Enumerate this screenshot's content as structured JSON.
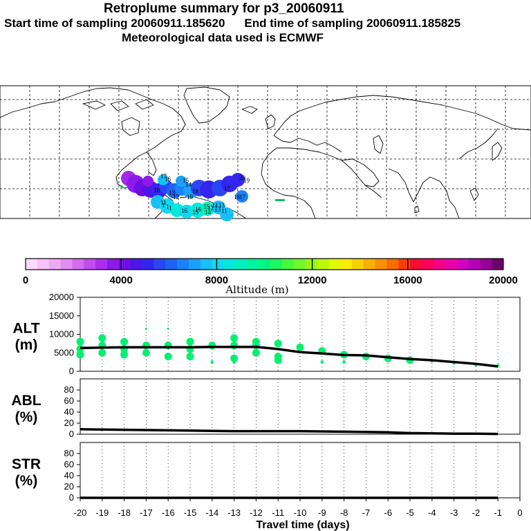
{
  "header": {
    "title": "Retroplume summary for p3_20060911",
    "start_label": "Start time of sampling 20060911.185620",
    "end_label": "End time of sampling 20060911.185825",
    "met_label": "Meteorological data used is ECMWF"
  },
  "map": {
    "plume_labels": [
      "17",
      "16",
      "15",
      "14",
      "13",
      "12",
      "11",
      "10",
      "19",
      "18",
      "1",
      "1",
      "1",
      "17",
      "16",
      "15",
      "14",
      "13",
      "12",
      "11",
      "20",
      "19",
      "18",
      "17",
      "16",
      "15",
      "14",
      "13"
    ]
  },
  "colorbar": {
    "title": "Altitude (m)",
    "tick_labels": [
      "0",
      "4000",
      "8000",
      "12000",
      "16000",
      "20000"
    ],
    "colors": [
      "#ffd9ff",
      "#f7c2f7",
      "#eeaaf4",
      "#e38cf2",
      "#d56cf0",
      "#c24cee",
      "#aa2cec",
      "#8c1aea",
      "#6e0ee4",
      "#4e16e8",
      "#3326ee",
      "#2a46f0",
      "#1e64f4",
      "#1a82f8",
      "#1aa2fa",
      "#18c0fa",
      "#10d8f2",
      "#06e8dc",
      "#00f0c0",
      "#00f4a0",
      "#00f680",
      "#1cf660",
      "#46f640",
      "#70f828",
      "#96f814",
      "#bcf808",
      "#e0f800",
      "#f8ec00",
      "#f8d000",
      "#f8b000",
      "#f89000",
      "#f86c00",
      "#f83e00",
      "#f80c30",
      "#f8005c",
      "#f40086",
      "#e800a8",
      "#d400c0",
      "#b400b4",
      "#960096",
      "#6e006e"
    ]
  },
  "chart_data": [
    {
      "type": "line",
      "panel": "ALT",
      "ylabel": "ALT\n(m)",
      "ylim": [
        0,
        20000
      ],
      "yticks": [
        0,
        5000,
        10000,
        15000,
        20000
      ],
      "x": [
        -20,
        -19,
        -18,
        -17,
        -16,
        -15,
        -14,
        -13,
        -12,
        -11,
        -10,
        -9,
        -8,
        -7,
        -6,
        -5,
        -4,
        -3,
        -2,
        -1
      ],
      "median_altitude_m": [
        6300,
        6400,
        6500,
        6500,
        6500,
        6500,
        6600,
        6600,
        6600,
        6000,
        5200,
        4800,
        4400,
        4300,
        3800,
        3300,
        3000,
        2500,
        2000,
        1300
      ],
      "scatter_points": [
        [
          -20,
          8000
        ],
        [
          -20,
          6000
        ],
        [
          -20,
          4500
        ],
        [
          -19,
          9000
        ],
        [
          -19,
          7000
        ],
        [
          -19,
          5000
        ],
        [
          -18,
          8000
        ],
        [
          -18,
          6000
        ],
        [
          -18,
          4500
        ],
        [
          -17,
          11500
        ],
        [
          -17,
          7000
        ],
        [
          -17,
          5000
        ],
        [
          -16,
          11500
        ],
        [
          -16,
          7000
        ],
        [
          -16,
          4000
        ],
        [
          -15,
          8000
        ],
        [
          -15,
          6000
        ],
        [
          -15,
          4000
        ],
        [
          -14,
          7000
        ],
        [
          -14,
          2500
        ],
        [
          -13,
          9000
        ],
        [
          -13,
          7000
        ],
        [
          -13,
          3500
        ],
        [
          -13,
          2500
        ],
        [
          -12,
          8000
        ],
        [
          -12,
          7000
        ],
        [
          -12,
          5000
        ],
        [
          -11,
          7500
        ],
        [
          -11,
          4000
        ],
        [
          -11,
          3000
        ],
        [
          -10,
          6500
        ],
        [
          -9,
          5500
        ],
        [
          -9,
          2500
        ],
        [
          -8,
          4500
        ],
        [
          -8,
          2500
        ],
        [
          -7,
          4000
        ],
        [
          -6,
          3500
        ],
        [
          -5,
          3000
        ],
        [
          -4,
          2800
        ],
        [
          -3,
          2200
        ],
        [
          -2,
          1700
        ],
        [
          -1,
          1500
        ]
      ],
      "point_color": "#00f070"
    },
    {
      "type": "line",
      "panel": "ABL",
      "ylabel": "ABL\n(%)",
      "ylim": [
        0,
        100
      ],
      "yticks": [
        0,
        20,
        40,
        60,
        80
      ],
      "x": [
        -20,
        -19,
        -18,
        -17,
        -16,
        -15,
        -14,
        -13,
        -12,
        -11,
        -10,
        -9,
        -8,
        -7,
        -6,
        -5,
        -4,
        -3,
        -2,
        -1
      ],
      "values": [
        9,
        8.5,
        8,
        7.5,
        7,
        6.5,
        6,
        5.5,
        5.5,
        5.5,
        5.5,
        5,
        4.5,
        4,
        3.5,
        2,
        1.5,
        1,
        1,
        0.5
      ]
    },
    {
      "type": "line",
      "panel": "STR",
      "ylabel": "STR\n(%)",
      "ylim": [
        0,
        100
      ],
      "yticks": [
        0,
        20,
        40,
        60,
        80
      ],
      "x": [
        -20,
        -19,
        -18,
        -17,
        -16,
        -15,
        -14,
        -13,
        -12,
        -11,
        -10,
        -9,
        -8,
        -7,
        -6,
        -5,
        -4,
        -3,
        -2,
        -1
      ],
      "values": [
        0,
        0,
        0,
        0,
        0,
        0,
        0,
        0,
        0,
        0,
        0,
        0,
        0,
        0,
        0,
        0,
        0,
        0,
        0,
        0
      ],
      "xlabel": "Travel time (days)",
      "xlim": [
        -20,
        0
      ],
      "xtick_labels": [
        "-20",
        "-19",
        "-18",
        "-17",
        "-16",
        "-15",
        "-14",
        "-13",
        "-12",
        "-11",
        "-10",
        "-9",
        "-8",
        "-7",
        "-6",
        "-5",
        "-4",
        "-3",
        "-2",
        "-1",
        "0"
      ]
    }
  ]
}
